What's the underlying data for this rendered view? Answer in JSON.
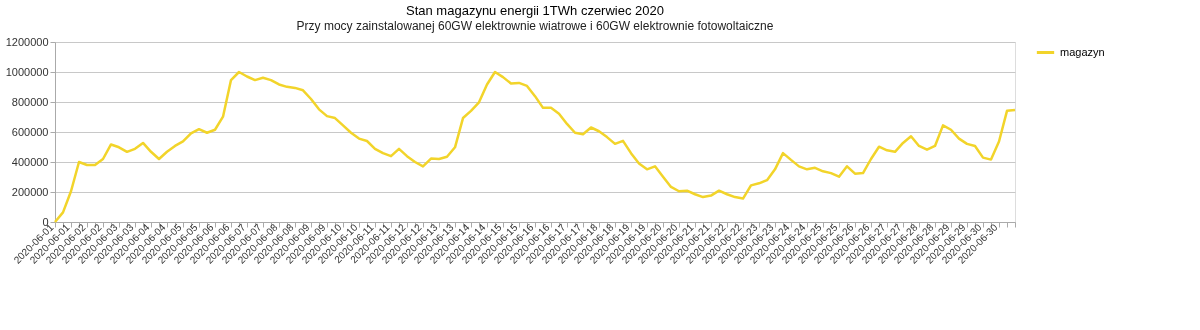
{
  "chart_data": {
    "type": "line",
    "title": "Stan magazynu energii 1TWh czerwiec 2020",
    "subtitle": "Przy mocy zainstalowanej 60GW elektrownie wiatrowe i 60GW elektrownie fotowoltaiczne",
    "categories": [
      "2020-06-01",
      null,
      "2020-06-01",
      null,
      "2020-06-02",
      null,
      "2020-06-02",
      null,
      "2020-06-03",
      null,
      "2020-06-03",
      null,
      "2020-06-04",
      null,
      "2020-06-04",
      null,
      "2020-06-05",
      null,
      "2020-06-05",
      null,
      "2020-06-06",
      null,
      "2020-06-06",
      null,
      "2020-06-07",
      null,
      "2020-06-07",
      null,
      "2020-06-08",
      null,
      "2020-06-08",
      null,
      "2020-06-09",
      null,
      "2020-06-09",
      null,
      "2020-06-10",
      null,
      "2020-06-10",
      null,
      "2020-06-11",
      null,
      "2020-06-11",
      null,
      "2020-06-12",
      null,
      "2020-06-12",
      null,
      "2020-06-13",
      null,
      "2020-06-13",
      null,
      "2020-06-14",
      null,
      "2020-06-14",
      null,
      "2020-06-15",
      null,
      "2020-06-15",
      null,
      "2020-06-16",
      null,
      "2020-06-16",
      null,
      "2020-06-17",
      null,
      "2020-06-17",
      null,
      "2020-06-18",
      null,
      "2020-06-18",
      null,
      "2020-06-19",
      null,
      "2020-06-19",
      null,
      "2020-06-20",
      null,
      "2020-06-20",
      null,
      "2020-06-21",
      null,
      "2020-06-21",
      null,
      "2020-06-22",
      null,
      "2020-06-22",
      null,
      "2020-06-23",
      null,
      "2020-06-23",
      null,
      "2020-06-24",
      null,
      "2020-06-24",
      null,
      "2020-06-25",
      null,
      "2020-06-25",
      null,
      "2020-06-26",
      null,
      "2020-06-26",
      null,
      "2020-06-27",
      null,
      "2020-06-27",
      null,
      "2020-06-28",
      null,
      "2020-06-28",
      null,
      "2020-06-29",
      null,
      "2020-06-29",
      null,
      "2020-06-30",
      null,
      "2020-06-30",
      null,
      null
    ],
    "series": [
      {
        "name": "magazyn",
        "color": "#f2d42a",
        "values": [
          0,
          64000,
          205000,
          400000,
          380000,
          380000,
          420000,
          517000,
          498000,
          468000,
          488000,
          527000,
          468000,
          420000,
          468000,
          507000,
          537000,
          591000,
          619000,
          595000,
          615000,
          702000,
          946000,
          1000000,
          970000,
          946000,
          962000,
          946000,
          917000,
          901000,
          894000,
          878000,
          820000,
          751000,
          706000,
          693000,
          644000,
          595000,
          556000,
          540000,
          488000,
          459000,
          439000,
          488000,
          439000,
          400000,
          371000,
          423000,
          420000,
          435000,
          498000,
          693000,
          741000,
          798000,
          917000,
          1000000,
          966000,
          923000,
          927000,
          907000,
          839000,
          761000,
          761000,
          722000,
          654000,
          595000,
          585000,
          630000,
          605000,
          566000,
          521000,
          541000,
          459000,
          390000,
          351000,
          371000,
          302000,
          234000,
          205000,
          209000,
          185000,
          166000,
          176000,
          209000,
          185000,
          166000,
          156000,
          244000,
          258000,
          279000,
          351000,
          459000,
          414000,
          371000,
          351000,
          361000,
          338000,
          326000,
          302000,
          371000,
          322000,
          326000,
          420000,
          502000,
          478000,
          468000,
          527000,
          572000,
          507000,
          482000,
          507000,
          644000,
          615000,
          556000,
          521000,
          507000,
          429000,
          416000,
          537000,
          741000,
          747000
        ]
      }
    ],
    "ylim": [
      0,
      1200000
    ],
    "yticks": [
      0,
      200000,
      400000,
      600000,
      800000,
      1000000,
      1200000
    ],
    "grid": "y",
    "legend": "right",
    "marker": "none",
    "line_style": "solid"
  }
}
